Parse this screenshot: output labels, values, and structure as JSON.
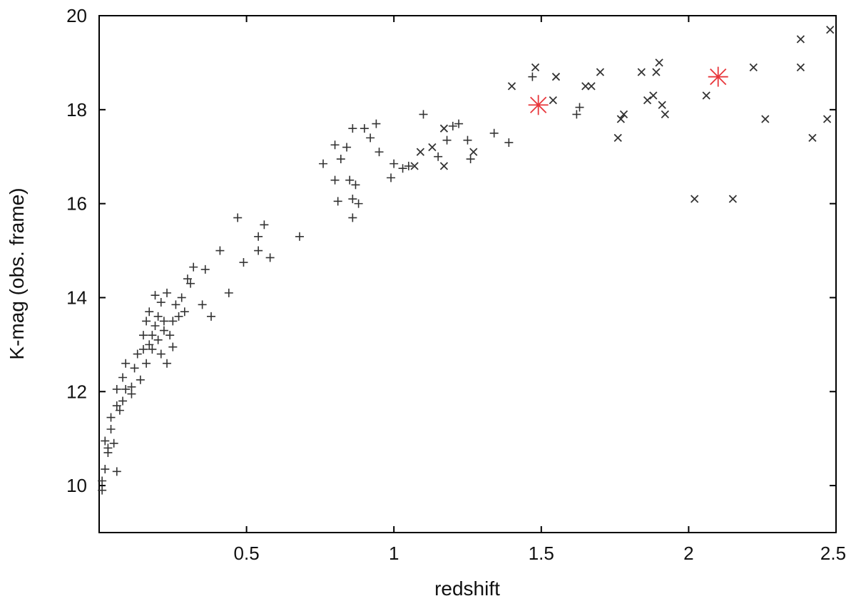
{
  "chart_data": {
    "type": "scatter",
    "title": "",
    "xlabel": "redshift",
    "ylabel": "K-mag (obs. frame)",
    "xlim": [
      0.0,
      2.5
    ],
    "ylim": [
      9.0,
      20.0
    ],
    "x_ticks": [
      0.5,
      1,
      1.5,
      2,
      2.5
    ],
    "x_tick_labels": [
      "0.5",
      "1",
      "1.5",
      "2",
      "2.5"
    ],
    "y_ticks": [
      10,
      12,
      14,
      16,
      18,
      20
    ],
    "y_tick_labels": [
      "10",
      "12",
      "14",
      "16",
      "18",
      "20"
    ],
    "grid": false,
    "legend": "none",
    "series": [
      {
        "marker": "plus",
        "color": "#333333",
        "points": [
          [
            0.01,
            9.9
          ],
          [
            0.01,
            10.1
          ],
          [
            0.02,
            10.35
          ],
          [
            0.02,
            10.95
          ],
          [
            0.03,
            10.8
          ],
          [
            0.03,
            10.7
          ],
          [
            0.04,
            11.2
          ],
          [
            0.04,
            11.45
          ],
          [
            0.05,
            10.9
          ],
          [
            0.06,
            10.3
          ],
          [
            0.06,
            11.7
          ],
          [
            0.06,
            12.05
          ],
          [
            0.07,
            11.6
          ],
          [
            0.08,
            11.8
          ],
          [
            0.08,
            12.3
          ],
          [
            0.09,
            12.05
          ],
          [
            0.09,
            12.6
          ],
          [
            0.11,
            12.1
          ],
          [
            0.11,
            11.95
          ],
          [
            0.12,
            12.5
          ],
          [
            0.13,
            12.8
          ],
          [
            0.14,
            12.25
          ],
          [
            0.15,
            12.9
          ],
          [
            0.15,
            13.2
          ],
          [
            0.16,
            12.6
          ],
          [
            0.16,
            13.5
          ],
          [
            0.17,
            13.0
          ],
          [
            0.17,
            13.7
          ],
          [
            0.18,
            13.2
          ],
          [
            0.18,
            12.9
          ],
          [
            0.19,
            13.4
          ],
          [
            0.19,
            14.05
          ],
          [
            0.2,
            13.1
          ],
          [
            0.2,
            13.6
          ],
          [
            0.21,
            12.8
          ],
          [
            0.21,
            13.9
          ],
          [
            0.22,
            13.3
          ],
          [
            0.22,
            13.5
          ],
          [
            0.23,
            12.6
          ],
          [
            0.23,
            14.1
          ],
          [
            0.24,
            13.2
          ],
          [
            0.25,
            13.5
          ],
          [
            0.25,
            12.95
          ],
          [
            0.26,
            13.85
          ],
          [
            0.27,
            13.6
          ],
          [
            0.28,
            14.0
          ],
          [
            0.29,
            13.7
          ],
          [
            0.3,
            14.4
          ],
          [
            0.31,
            14.3
          ],
          [
            0.32,
            14.65
          ],
          [
            0.35,
            13.85
          ],
          [
            0.36,
            14.6
          ],
          [
            0.38,
            13.6
          ],
          [
            0.41,
            15.0
          ],
          [
            0.44,
            14.1
          ],
          [
            0.47,
            15.7
          ],
          [
            0.49,
            14.75
          ],
          [
            0.54,
            15.3
          ],
          [
            0.54,
            15.0
          ],
          [
            0.56,
            15.55
          ],
          [
            0.58,
            14.85
          ],
          [
            0.68,
            15.3
          ],
          [
            0.76,
            16.85
          ],
          [
            0.8,
            17.25
          ],
          [
            0.8,
            16.5
          ],
          [
            0.81,
            16.05
          ],
          [
            0.82,
            16.95
          ],
          [
            0.84,
            17.2
          ],
          [
            0.85,
            16.5
          ],
          [
            0.86,
            17.6
          ],
          [
            0.86,
            16.1
          ],
          [
            0.86,
            15.7
          ],
          [
            0.87,
            16.4
          ],
          [
            0.88,
            16.0
          ],
          [
            0.9,
            17.6
          ],
          [
            0.92,
            17.4
          ],
          [
            0.94,
            17.7
          ],
          [
            0.95,
            17.1
          ],
          [
            0.99,
            16.55
          ],
          [
            1.0,
            16.85
          ],
          [
            1.03,
            16.75
          ],
          [
            1.05,
            16.8
          ],
          [
            1.1,
            17.9
          ],
          [
            1.15,
            17.0
          ],
          [
            1.18,
            17.35
          ],
          [
            1.2,
            17.65
          ],
          [
            1.22,
            17.7
          ],
          [
            1.25,
            17.35
          ],
          [
            1.26,
            16.95
          ],
          [
            1.34,
            17.5
          ],
          [
            1.39,
            17.3
          ],
          [
            1.47,
            18.7
          ],
          [
            1.62,
            17.9
          ],
          [
            1.63,
            18.05
          ]
        ]
      },
      {
        "marker": "cross",
        "color": "#333333",
        "points": [
          [
            1.07,
            16.8
          ],
          [
            1.09,
            17.1
          ],
          [
            1.13,
            17.2
          ],
          [
            1.17,
            17.6
          ],
          [
            1.17,
            16.8
          ],
          [
            1.27,
            17.1
          ],
          [
            1.4,
            18.5
          ],
          [
            1.48,
            18.9
          ],
          [
            1.54,
            18.2
          ],
          [
            1.55,
            18.7
          ],
          [
            1.65,
            18.5
          ],
          [
            1.67,
            18.5
          ],
          [
            1.7,
            18.8
          ],
          [
            1.76,
            17.4
          ],
          [
            1.77,
            17.8
          ],
          [
            1.78,
            17.9
          ],
          [
            1.84,
            18.8
          ],
          [
            1.86,
            18.2
          ],
          [
            1.88,
            18.3
          ],
          [
            1.89,
            18.8
          ],
          [
            1.9,
            19.0
          ],
          [
            1.91,
            18.1
          ],
          [
            1.92,
            17.9
          ],
          [
            2.02,
            16.1
          ],
          [
            2.06,
            18.3
          ],
          [
            2.15,
            16.1
          ],
          [
            2.22,
            18.9
          ],
          [
            2.26,
            17.8
          ],
          [
            2.38,
            19.5
          ],
          [
            2.38,
            18.9
          ],
          [
            2.42,
            17.4
          ],
          [
            2.47,
            17.8
          ],
          [
            2.48,
            19.7
          ]
        ]
      },
      {
        "marker": "star",
        "color": "#e8373c",
        "points": [
          [
            1.49,
            18.1
          ],
          [
            2.1,
            18.7
          ]
        ]
      }
    ]
  }
}
